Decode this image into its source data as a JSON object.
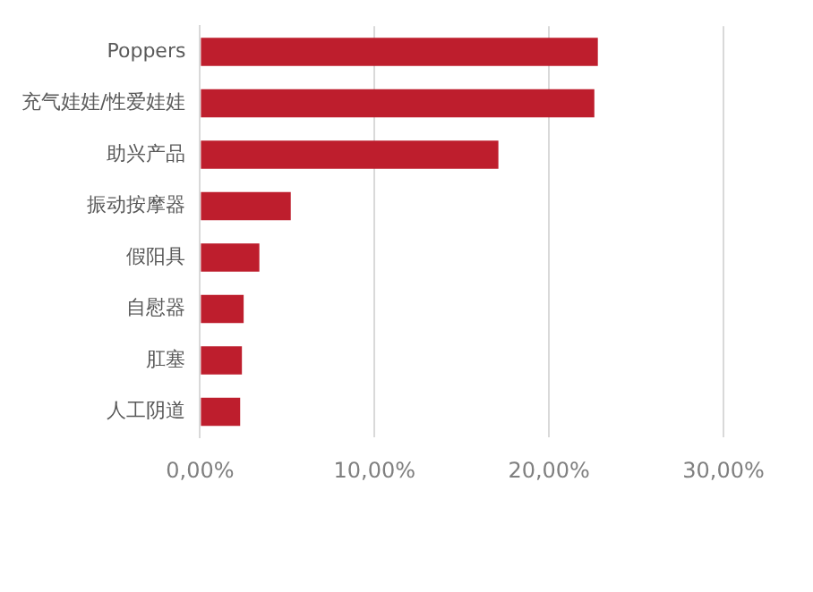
{
  "chart_data": {
    "type": "bar",
    "orientation": "horizontal",
    "categories": [
      "Poppers",
      "充气娃娃/性爱娃娃",
      "助兴产品",
      "振动按摩器",
      "假阳具",
      "自慰器",
      "肛塞",
      "人工阴道"
    ],
    "values": [
      22.8,
      22.6,
      17.1,
      5.2,
      3.4,
      2.5,
      2.4,
      2.3
    ],
    "color": "#be1e2d",
    "xlim": [
      0,
      30
    ],
    "xticks": [
      {
        "value": 0,
        "label": "0,00%"
      },
      {
        "value": 10,
        "label": "10,00%"
      },
      {
        "value": 20,
        "label": "20,00%"
      },
      {
        "value": 30,
        "label": "30,00%"
      }
    ],
    "grid": "x",
    "legend": false
  }
}
